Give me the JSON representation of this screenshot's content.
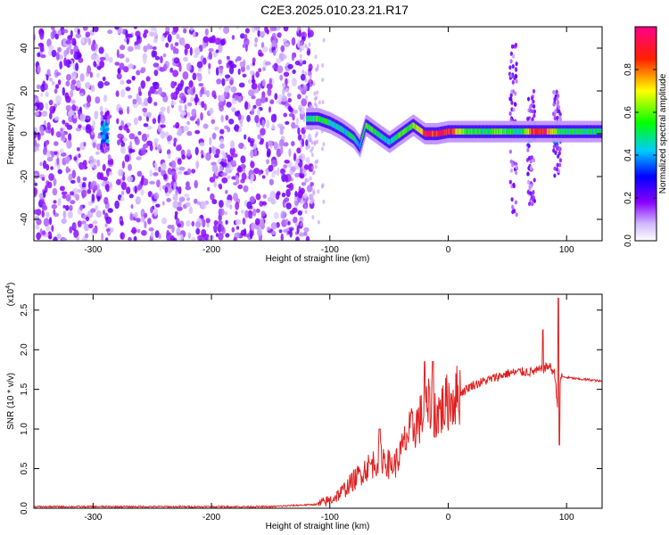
{
  "figure": {
    "title": "C2E3.2025.010.23.21.R17"
  },
  "chart_data": [
    {
      "type": "heatmap",
      "xlabel": "Height of straight line (km)",
      "ylabel": "Frequency (Hz)",
      "xlim": [
        -350,
        130
      ],
      "ylim": [
        -50,
        50
      ],
      "x_ticks": [
        -300,
        -200,
        -100,
        0,
        100
      ],
      "y_ticks": [
        -40,
        -20,
        0,
        20,
        40
      ],
      "colorbar": {
        "label": "Normalized spectral amplitude",
        "ticks": [
          0.0,
          0.2,
          0.4,
          0.6,
          0.8
        ],
        "tick_labels": [
          "0.0",
          "0.2",
          "0.4",
          "0.6",
          "0.8"
        ],
        "range": [
          0,
          1
        ],
        "colormap": [
          "#ffffff",
          "#8800ff",
          "#0000ff",
          "#00ffff",
          "#00ff00",
          "#ffff00",
          "#ff0000",
          "#ff0088"
        ]
      },
      "noise_region": {
        "x": [
          -350,
          -115
        ],
        "y": [
          -50,
          50
        ],
        "gap_x": [
          -285,
          -280
        ]
      },
      "ridge": {
        "x": [
          -120,
          -110,
          -100,
          -90,
          -80,
          -75,
          -70,
          -60,
          -50,
          -40,
          -30,
          -20,
          -10,
          0,
          10,
          20,
          30,
          40,
          50,
          60,
          70,
          80,
          90,
          100,
          110,
          120,
          130
        ],
        "freq": [
          7,
          7,
          5,
          2,
          -2,
          -6,
          4,
          0,
          -4,
          0,
          4,
          0,
          0,
          1,
          1,
          1,
          1,
          1,
          1,
          1,
          1,
          1,
          1,
          1,
          1,
          1,
          1
        ],
        "amplitude": [
          0.5,
          0.55,
          0.5,
          0.45,
          0.5,
          0.4,
          0.6,
          0.5,
          0.45,
          0.55,
          0.6,
          0.85,
          0.9,
          0.95,
          0.6,
          0.55,
          0.5,
          0.6,
          0.55,
          0.45,
          0.85,
          0.9,
          0.6,
          0.5,
          0.5,
          0.5,
          0.5
        ]
      },
      "vertical_bursts": [
        {
          "x": 55,
          "y": [
            -38,
            42
          ]
        },
        {
          "x": 70,
          "y": [
            -33,
            20
          ]
        },
        {
          "x": 92,
          "y": [
            -20,
            20
          ]
        },
        {
          "x": -290,
          "y": [
            -8,
            10
          ]
        }
      ]
    },
    {
      "type": "line",
      "xlabel": "Height of straight line (km)",
      "ylabel": "SNR (10 * v/v)",
      "y_multiplier": "(x10⁴)",
      "y_multiplier_base": "(x10",
      "y_multiplier_exp": "4",
      "y_multiplier_close": ")",
      "xlim": [
        -350,
        130
      ],
      "ylim": [
        0,
        2.7
      ],
      "x_ticks": [
        -300,
        -200,
        -100,
        0,
        100
      ],
      "y_ticks": [
        0.0,
        0.5,
        1.0,
        1.5,
        2.0,
        2.5
      ],
      "series": [
        {
          "color": "#e02020",
          "x": [
            -350,
            -300,
            -250,
            -200,
            -150,
            -110,
            -100,
            -90,
            -80,
            -70,
            -60,
            -55,
            -50,
            -45,
            -40,
            -35,
            -30,
            -25,
            -20,
            -15,
            -10,
            -5,
            0,
            10,
            20,
            30,
            40,
            50,
            60,
            70,
            80,
            85,
            90,
            93,
            95,
            100,
            110,
            120,
            130
          ],
          "y": [
            0.02,
            0.02,
            0.02,
            0.02,
            0.02,
            0.05,
            0.1,
            0.2,
            0.35,
            0.5,
            0.6,
            0.65,
            0.55,
            0.55,
            0.7,
            0.9,
            1.0,
            1.1,
            1.2,
            1.3,
            1.2,
            1.25,
            1.35,
            1.45,
            1.55,
            1.6,
            1.65,
            1.7,
            1.72,
            1.72,
            1.75,
            1.8,
            1.7,
            1.2,
            1.66,
            1.65,
            1.63,
            1.62,
            1.6
          ],
          "spikes": [
            {
              "x": -58,
              "y": 1.0
            },
            {
              "x": -20,
              "y": 1.85
            },
            {
              "x": -13,
              "y": 1.85
            },
            {
              "x": -12,
              "y": 0.9
            },
            {
              "x": 80,
              "y": 2.25
            },
            {
              "x": 93,
              "y": 2.65
            },
            {
              "x": 94,
              "y": 0.8
            }
          ]
        }
      ]
    }
  ]
}
